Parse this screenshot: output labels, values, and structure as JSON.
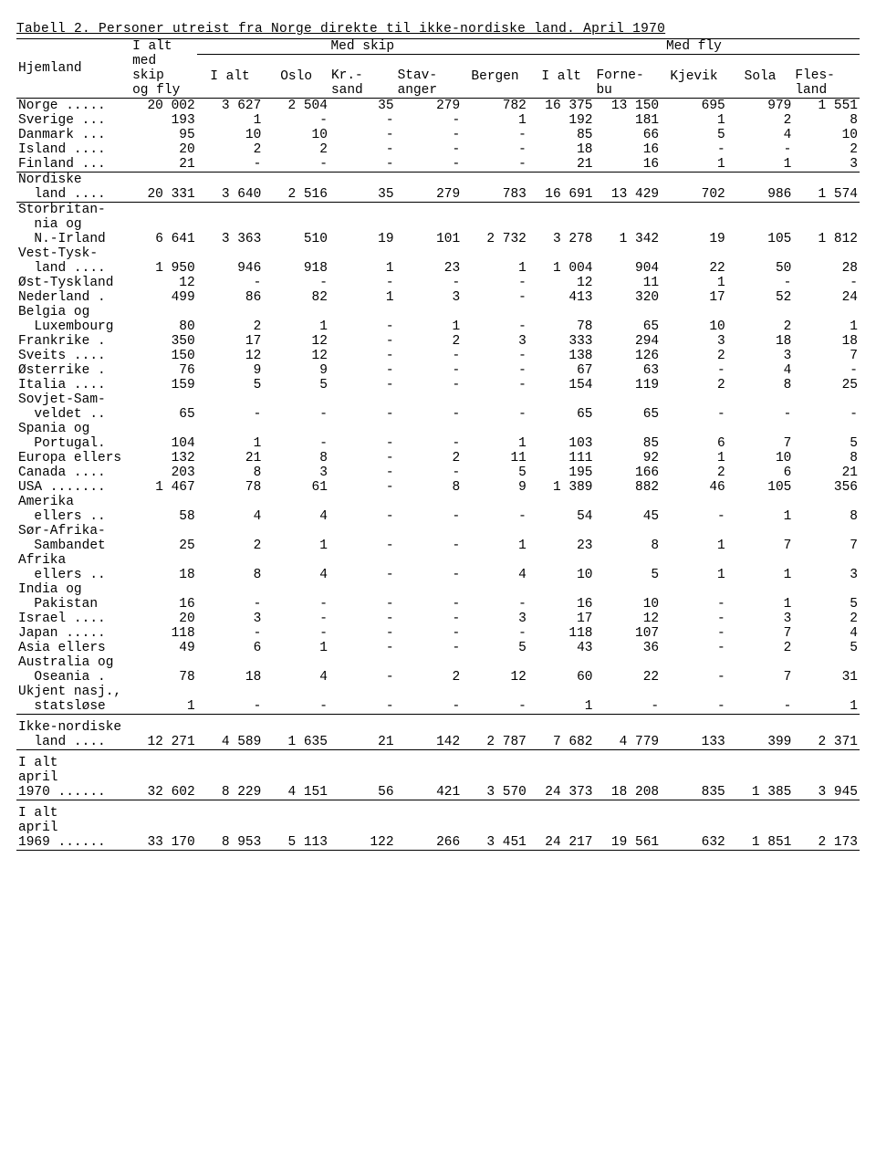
{
  "title": "Tabell 2.  Personer utreist fra Norge direkte til ikke-nordiske land.  April 1970",
  "header": {
    "hjemland": "Hjemland",
    "ialt_skip_fly": "I alt\nmed\nskip\nog fly",
    "med_skip": "Med skip",
    "med_fly": "Med fly",
    "skip_cols": [
      "I alt",
      "Oslo",
      "Kr.-\nsand",
      "Stav-\nanger",
      "Bergen"
    ],
    "fly_cols": [
      "I alt",
      "Forne-\nbu",
      "Kjevik",
      "Sola",
      "Fles-\nland"
    ]
  },
  "rows": [
    {
      "label": "Norge .....",
      "v": [
        "20 002",
        "3 627",
        "2 504",
        "35",
        "279",
        "782",
        "16 375",
        "13 150",
        "695",
        "979",
        "1 551"
      ]
    },
    {
      "label": "Sverige ...",
      "v": [
        "193",
        "1",
        "-",
        "-",
        "-",
        "1",
        "192",
        "181",
        "1",
        "2",
        "8"
      ]
    },
    {
      "label": "Danmark ...",
      "v": [
        "95",
        "10",
        "10",
        "-",
        "-",
        "-",
        "85",
        "66",
        "5",
        "4",
        "10"
      ]
    },
    {
      "label": "Island ....",
      "v": [
        "20",
        "2",
        "2",
        "-",
        "-",
        "-",
        "18",
        "16",
        "-",
        "-",
        "2"
      ]
    },
    {
      "label": "Finland ...",
      "v": [
        "21",
        "-",
        "-",
        "-",
        "-",
        "-",
        "21",
        "16",
        "1",
        "1",
        "3"
      ],
      "rule": "under"
    },
    {
      "label": "Nordiske",
      "cont": true
    },
    {
      "label": "  land ....",
      "v": [
        "20 331",
        "3 640",
        "2 516",
        "35",
        "279",
        "783",
        "16 691",
        "13 429",
        "702",
        "986",
        "1 574"
      ],
      "rule": "under"
    },
    {
      "label": "Storbritan-",
      "cont": true
    },
    {
      "label": "  nia og",
      "cont": true
    },
    {
      "label": "  N.-Irland",
      "v": [
        "6 641",
        "3 363",
        "510",
        "19",
        "101",
        "2 732",
        "3 278",
        "1 342",
        "19",
        "105",
        "1 812"
      ]
    },
    {
      "label": "Vest-Tysk-",
      "cont": true
    },
    {
      "label": "  land ....",
      "v": [
        "1 950",
        "946",
        "918",
        "1",
        "23",
        "1",
        "1 004",
        "904",
        "22",
        "50",
        "28"
      ]
    },
    {
      "label": "Øst-Tyskland",
      "v": [
        "12",
        "-",
        "-",
        "-",
        "-",
        "-",
        "12",
        "11",
        "1",
        "-",
        "-"
      ]
    },
    {
      "label": "Nederland .",
      "v": [
        "499",
        "86",
        "82",
        "1",
        "3",
        "-",
        "413",
        "320",
        "17",
        "52",
        "24"
      ]
    },
    {
      "label": "Belgia og",
      "cont": true
    },
    {
      "label": "  Luxembourg",
      "v": [
        "80",
        "2",
        "1",
        "-",
        "1",
        "-",
        "78",
        "65",
        "10",
        "2",
        "1"
      ]
    },
    {
      "label": "Frankrike .",
      "v": [
        "350",
        "17",
        "12",
        "-",
        "2",
        "3",
        "333",
        "294",
        "3",
        "18",
        "18"
      ]
    },
    {
      "label": "Sveits ....",
      "v": [
        "150",
        "12",
        "12",
        "-",
        "-",
        "-",
        "138",
        "126",
        "2",
        "3",
        "7"
      ]
    },
    {
      "label": "Østerrike .",
      "v": [
        "76",
        "9",
        "9",
        "-",
        "-",
        "-",
        "67",
        "63",
        "-",
        "4",
        "-"
      ]
    },
    {
      "label": "Italia ....",
      "v": [
        "159",
        "5",
        "5",
        "-",
        "-",
        "-",
        "154",
        "119",
        "2",
        "8",
        "25"
      ]
    },
    {
      "label": "Sovjet-Sam-",
      "cont": true
    },
    {
      "label": "  veldet ..",
      "v": [
        "65",
        "-",
        "-",
        "-",
        "-",
        "-",
        "65",
        "65",
        "-",
        "-",
        "-"
      ]
    },
    {
      "label": "Spania og",
      "cont": true
    },
    {
      "label": "  Portugal.",
      "v": [
        "104",
        "1",
        "-",
        "-",
        "-",
        "1",
        "103",
        "85",
        "6",
        "7",
        "5"
      ]
    },
    {
      "label": "Europa ellers",
      "v": [
        "132",
        "21",
        "8",
        "-",
        "2",
        "11",
        "111",
        "92",
        "1",
        "10",
        "8"
      ]
    },
    {
      "label": "Canada ....",
      "v": [
        "203",
        "8",
        "3",
        "-",
        "-",
        "5",
        "195",
        "166",
        "2",
        "6",
        "21"
      ]
    },
    {
      "label": "USA .......",
      "v": [
        "1 467",
        "78",
        "61",
        "-",
        "8",
        "9",
        "1 389",
        "882",
        "46",
        "105",
        "356"
      ]
    },
    {
      "label": "Amerika",
      "cont": true
    },
    {
      "label": "  ellers ..",
      "v": [
        "58",
        "4",
        "4",
        "-",
        "-",
        "-",
        "54",
        "45",
        "-",
        "1",
        "8"
      ]
    },
    {
      "label": "Sør-Afrika-",
      "cont": true
    },
    {
      "label": "  Sambandet",
      "v": [
        "25",
        "2",
        "1",
        "-",
        "-",
        "1",
        "23",
        "8",
        "1",
        "7",
        "7"
      ]
    },
    {
      "label": "Afrika",
      "cont": true
    },
    {
      "label": "  ellers ..",
      "v": [
        "18",
        "8",
        "4",
        "-",
        "-",
        "4",
        "10",
        "5",
        "1",
        "1",
        "3"
      ]
    },
    {
      "label": "India og",
      "cont": true
    },
    {
      "label": "  Pakistan",
      "v": [
        "16",
        "-",
        "-",
        "-",
        "-",
        "-",
        "16",
        "10",
        "-",
        "1",
        "5"
      ]
    },
    {
      "label": "Israel ....",
      "v": [
        "20",
        "3",
        "-",
        "-",
        "-",
        "3",
        "17",
        "12",
        "-",
        "3",
        "2"
      ]
    },
    {
      "label": "Japan .....",
      "v": [
        "118",
        "-",
        "-",
        "-",
        "-",
        "-",
        "118",
        "107",
        "-",
        "7",
        "4"
      ]
    },
    {
      "label": "Asia ellers",
      "v": [
        "49",
        "6",
        "1",
        "-",
        "-",
        "5",
        "43",
        "36",
        "-",
        "2",
        "5"
      ]
    },
    {
      "label": "Australia og",
      "cont": true
    },
    {
      "label": "  Oseania .",
      "v": [
        "78",
        "18",
        "4",
        "-",
        "2",
        "12",
        "60",
        "22",
        "-",
        "7",
        "31"
      ]
    },
    {
      "label": "Ukjent nasj.,",
      "cont": true
    },
    {
      "label": "  statsløse",
      "v": [
        "1",
        "-",
        "-",
        "-",
        "-",
        "-",
        "1",
        "-",
        "-",
        "-",
        "1"
      ],
      "rule": "under"
    },
    {
      "spacer": true
    },
    {
      "label": "Ikke-nordiske",
      "cont": true
    },
    {
      "label": "  land ....",
      "v": [
        "12 271",
        "4 589",
        "1 635",
        "21",
        "142",
        "2 787",
        "7 682",
        "4 779",
        "133",
        "399",
        "2 371"
      ],
      "rule": "under"
    },
    {
      "spacer": true
    },
    {
      "label": "I alt",
      "cont": true
    },
    {
      "label": "april",
      "cont": true
    },
    {
      "label": "1970 ......",
      "v": [
        "32 602",
        "8 229",
        "4 151",
        "56",
        "421",
        "3 570",
        "24 373",
        "18 208",
        "835",
        "1 385",
        "3 945"
      ],
      "rule": "under-heavy"
    },
    {
      "spacer": true
    },
    {
      "label": "I alt",
      "cont": true
    },
    {
      "label": "april",
      "cont": true
    },
    {
      "label": "1969 ......",
      "v": [
        "33 170",
        "8 953",
        "5 113",
        "122",
        "266",
        "3 451",
        "24 217",
        "19 561",
        "632",
        "1 851",
        "2 173"
      ],
      "rule": "under-heavy"
    }
  ]
}
